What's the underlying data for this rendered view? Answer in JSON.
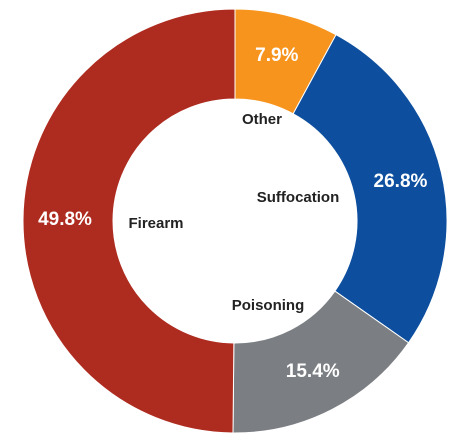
{
  "chart_data": {
    "type": "donut",
    "categories": [
      "Other",
      "Suffocation",
      "Poisoning",
      "Firearm"
    ],
    "values": [
      7.9,
      26.8,
      15.4,
      49.8
    ],
    "value_labels": [
      "7.9%",
      "26.8%",
      "15.4%",
      "49.8%"
    ],
    "colors": [
      "#f7941d",
      "#0d4f9e",
      "#7b7f83",
      "#ae2b1f"
    ]
  }
}
